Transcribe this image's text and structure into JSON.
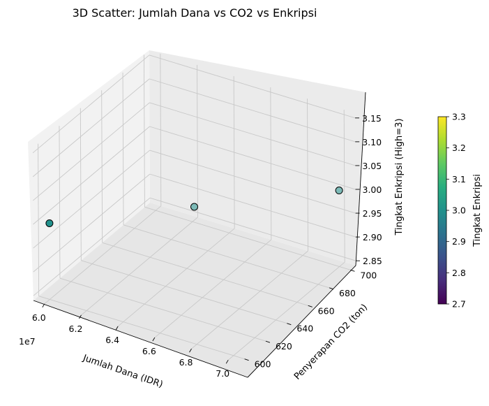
{
  "chart_data": {
    "type": "scatter",
    "projection": "3d",
    "title": "3D Scatter: Jumlah Dana vs CO2 vs Enkripsi",
    "xlabel": "Jumlah Dana (IDR)",
    "ylabel": "Penyerapan CO2 (ton)",
    "zlabel": "Tingkat Enkripsi (High=3)",
    "x_offset_label": "1e7",
    "xticks": [
      "6.0",
      "6.2",
      "6.4",
      "6.6",
      "6.8",
      "7.0"
    ],
    "yticks": [
      "600",
      "620",
      "640",
      "660",
      "680",
      "700"
    ],
    "zticks": [
      "2.85",
      "2.90",
      "2.95",
      "3.00",
      "3.05",
      "3.10",
      "3.15"
    ],
    "points": [
      {
        "x": 60000000,
        "y": 600,
        "z": 3
      },
      {
        "x": 65000000,
        "y": 650,
        "z": 3
      },
      {
        "x": 70000000,
        "y": 700,
        "z": 3
      }
    ],
    "colorbar": {
      "label": "Tingkat Enkripsi",
      "colormap": "viridis",
      "ticks": [
        "2.7",
        "2.8",
        "2.9",
        "3.0",
        "3.1",
        "3.2",
        "3.3"
      ]
    },
    "point_color": "#21918c",
    "grid": true
  }
}
